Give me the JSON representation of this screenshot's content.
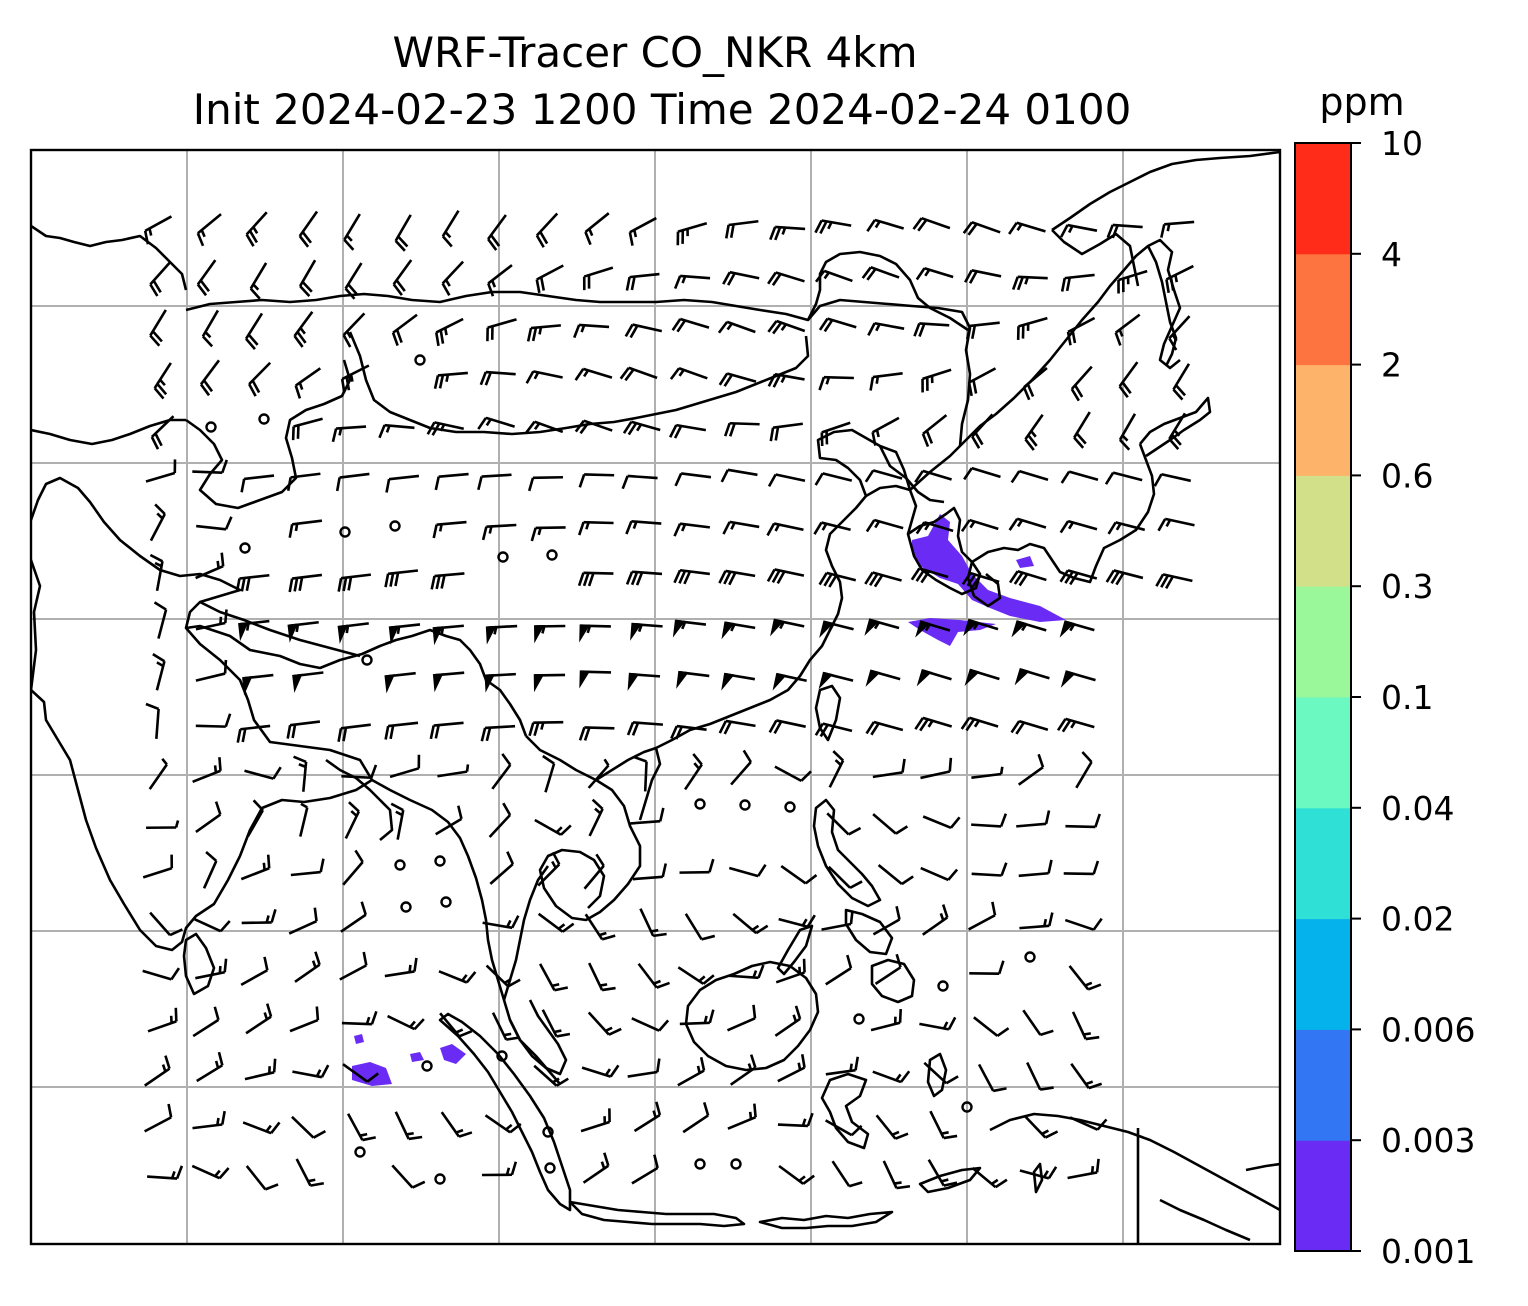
{
  "title_line1": "WRF-Tracer CO_NKR 4km",
  "title_line2": "Init 2024-02-23 1200 Time 2024-02-24 0100",
  "colorbar": {
    "unit": "ppm",
    "ticks": [
      "0.001",
      "0.003",
      "0.006",
      "0.02",
      "0.04",
      "0.1",
      "0.3",
      "0.6",
      "2",
      "4",
      "10"
    ],
    "colors": [
      "#6a2cf5",
      "#3276f3",
      "#06b2ec",
      "#2ee0d5",
      "#6bf8c1",
      "#9af79a",
      "#d2e08a",
      "#fdb36a",
      "#fe7440",
      "#fe2c18"
    ]
  },
  "map": {
    "coastline_color": "#000000",
    "grid_color": "#b0b0b0",
    "tracer_color": "#6a2cf5",
    "wind_barbs_shown": true
  }
}
